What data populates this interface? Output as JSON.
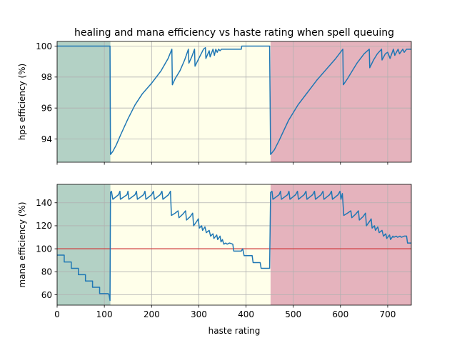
{
  "chart_data": [
    {
      "type": "line",
      "title": "healing and mana efficiency vs haste rating when spell queuing",
      "xlabel": "",
      "ylabel": "hps efficiency (%)",
      "xlim": [
        0,
        750
      ],
      "ylim": [
        92.5,
        100.3
      ],
      "xticks": [
        0,
        100,
        200,
        300,
        400,
        500,
        600,
        700
      ],
      "xticklabels": [
        "",
        "",
        "",
        "",
        "",
        "",
        "",
        ""
      ],
      "yticks": [
        94,
        96,
        98,
        100
      ],
      "yticklabels": [
        "94",
        "96",
        "98",
        "100"
      ],
      "grid": true,
      "bands": [
        {
          "from": 0,
          "to": 113,
          "color": "#b3d1c5"
        },
        {
          "from": 113,
          "to": 452,
          "color": "#ffffea"
        },
        {
          "from": 452,
          "to": 750,
          "color": "#e5b3bd"
        }
      ],
      "series": [
        {
          "color": "#1f77b4",
          "points": [
            [
              0,
              100
            ],
            [
              112,
              100
            ],
            [
              113,
              93.0
            ],
            [
              118,
              93.2
            ],
            [
              125,
              93.6
            ],
            [
              135,
              94.3
            ],
            [
              150,
              95.3
            ],
            [
              165,
              96.2
            ],
            [
              180,
              96.9
            ],
            [
              200,
              97.6
            ],
            [
              220,
              98.4
            ],
            [
              235,
              99.2
            ],
            [
              243,
              99.8
            ],
            [
              244,
              97.5
            ],
            [
              250,
              97.9
            ],
            [
              260,
              98.4
            ],
            [
              270,
              99.1
            ],
            [
              278,
              99.8
            ],
            [
              279,
              98.9
            ],
            [
              285,
              99.3
            ],
            [
              291,
              99.8
            ],
            [
              292,
              98.7
            ],
            [
              300,
              99.2
            ],
            [
              310,
              99.8
            ],
            [
              314,
              99.9
            ],
            [
              315,
              99.2
            ],
            [
              322,
              99.7
            ],
            [
              324,
              99.3
            ],
            [
              330,
              99.8
            ],
            [
              333,
              99.4
            ],
            [
              336,
              99.8
            ],
            [
              339,
              99.6
            ],
            [
              342,
              99.8
            ],
            [
              345,
              99.7
            ],
            [
              348,
              99.8
            ],
            [
              350,
              99.8
            ],
            [
              390,
              99.8
            ],
            [
              391,
              100
            ],
            [
              450,
              100
            ],
            [
              452,
              93.0
            ],
            [
              460,
              93.3
            ],
            [
              470,
              93.9
            ],
            [
              490,
              95.2
            ],
            [
              510,
              96.2
            ],
            [
              530,
              97.0
            ],
            [
              550,
              97.8
            ],
            [
              570,
              98.5
            ],
            [
              590,
              99.2
            ],
            [
              605,
              99.8
            ],
            [
              606,
              97.5
            ],
            [
              615,
              97.9
            ],
            [
              625,
              98.4
            ],
            [
              635,
              98.9
            ],
            [
              650,
              99.5
            ],
            [
              661,
              99.8
            ],
            [
              662,
              98.6
            ],
            [
              670,
              99.1
            ],
            [
              678,
              99.5
            ],
            [
              687,
              99.8
            ],
            [
              688,
              99.1
            ],
            [
              695,
              99.5
            ],
            [
              700,
              99.6
            ],
            [
              705,
              99.2
            ],
            [
              712,
              99.8
            ],
            [
              715,
              99.4
            ],
            [
              722,
              99.8
            ],
            [
              725,
              99.5
            ],
            [
              732,
              99.8
            ],
            [
              735,
              99.6
            ],
            [
              740,
              99.8
            ],
            [
              750,
              99.8
            ]
          ]
        }
      ]
    },
    {
      "type": "line",
      "title": "",
      "xlabel": "haste rating",
      "ylabel": "mana efficiency (%)",
      "xlim": [
        0,
        750
      ],
      "ylim": [
        51,
        156
      ],
      "xticks": [
        0,
        100,
        200,
        300,
        400,
        500,
        600,
        700
      ],
      "xticklabels": [
        "0",
        "100",
        "200",
        "300",
        "400",
        "500",
        "600",
        "700"
      ],
      "yticks": [
        60,
        80,
        100,
        120,
        140
      ],
      "yticklabels": [
        "60",
        "80",
        "100",
        "120",
        "140"
      ],
      "grid": true,
      "reference_line": {
        "y": 100,
        "color": "#d62728"
      },
      "bands": [
        {
          "from": 0,
          "to": 113,
          "color": "#b3d1c5"
        },
        {
          "from": 113,
          "to": 452,
          "color": "#ffffea"
        },
        {
          "from": 452,
          "to": 750,
          "color": "#e5b3bd"
        }
      ],
      "series": [
        {
          "color": "#1f77b4",
          "points": [
            [
              0,
              94.5
            ],
            [
              15,
              94.5
            ],
            [
              15,
              88.5
            ],
            [
              30,
              88.5
            ],
            [
              30,
              83
            ],
            [
              45,
              83
            ],
            [
              45,
              77.5
            ],
            [
              60,
              77.5
            ],
            [
              60,
              72
            ],
            [
              75,
              72
            ],
            [
              75,
              66.5
            ],
            [
              90,
              66.5
            ],
            [
              90,
              61
            ],
            [
              108,
              61
            ],
            [
              110,
              60
            ],
            [
              112,
              55
            ],
            [
              113,
              149
            ],
            [
              115,
              150
            ],
            [
              118,
              143
            ],
            [
              130,
              147
            ],
            [
              133,
              150
            ],
            [
              134,
              143
            ],
            [
              148,
              147
            ],
            [
              150,
              150
            ],
            [
              152,
              143
            ],
            [
              165,
              147
            ],
            [
              168,
              150
            ],
            [
              170,
              143
            ],
            [
              183,
              147
            ],
            [
              186,
              150
            ],
            [
              188,
              143
            ],
            [
              200,
              147
            ],
            [
              204,
              150
            ],
            [
              206,
              143
            ],
            [
              218,
              147
            ],
            [
              222,
              150
            ],
            [
              224,
              143
            ],
            [
              236,
              147
            ],
            [
              240,
              150
            ],
            [
              242,
              129
            ],
            [
              250,
              131
            ],
            [
              256,
              133
            ],
            [
              258,
              127
            ],
            [
              266,
              130
            ],
            [
              272,
              133
            ],
            [
              274,
              125
            ],
            [
              282,
              128
            ],
            [
              287,
              131
            ],
            [
              289,
              120
            ],
            [
              296,
              124
            ],
            [
              299,
              126
            ],
            [
              301,
              118
            ],
            [
              306,
              120
            ],
            [
              308,
              116
            ],
            [
              313,
              119
            ],
            [
              316,
              114
            ],
            [
              322,
              116
            ],
            [
              325,
              111
            ],
            [
              330,
              113
            ],
            [
              332,
              109
            ],
            [
              338,
              112
            ],
            [
              340,
              108
            ],
            [
              345,
              111
            ],
            [
              347,
              106
            ],
            [
              350,
              108
            ],
            [
              353,
              104
            ],
            [
              357,
              105
            ],
            [
              360,
              104
            ],
            [
              365,
              105
            ],
            [
              372,
              104
            ],
            [
              374,
              98
            ],
            [
              380,
              98
            ],
            [
              385,
              98
            ],
            [
              390,
              98
            ],
            [
              393,
              100
            ],
            [
              396,
              94
            ],
            [
              405,
              94
            ],
            [
              413,
              94
            ],
            [
              415,
              88
            ],
            [
              430,
              88
            ],
            [
              432,
              83
            ],
            [
              445,
              83
            ],
            [
              450,
              83
            ],
            [
              452,
              149
            ],
            [
              455,
              150
            ],
            [
              457,
              143
            ],
            [
              470,
              147
            ],
            [
              473,
              150
            ],
            [
              475,
              143
            ],
            [
              488,
              147
            ],
            [
              491,
              150
            ],
            [
              493,
              143
            ],
            [
              505,
              147
            ],
            [
              509,
              150
            ],
            [
              511,
              143
            ],
            [
              523,
              147
            ],
            [
              527,
              150
            ],
            [
              529,
              143
            ],
            [
              541,
              147
            ],
            [
              545,
              150
            ],
            [
              547,
              143
            ],
            [
              559,
              147
            ],
            [
              563,
              150
            ],
            [
              565,
              143
            ],
            [
              577,
              147
            ],
            [
              581,
              150
            ],
            [
              583,
              143
            ],
            [
              595,
              147
            ],
            [
              599,
              150
            ],
            [
              601,
              143
            ],
            [
              604,
              148
            ],
            [
              607,
              129
            ],
            [
              615,
              131
            ],
            [
              622,
              133
            ],
            [
              624,
              127
            ],
            [
              632,
              130
            ],
            [
              638,
              133
            ],
            [
              640,
              125
            ],
            [
              648,
              128
            ],
            [
              653,
              131
            ],
            [
              655,
              120
            ],
            [
              662,
              124
            ],
            [
              665,
              126
            ],
            [
              667,
              118
            ],
            [
              672,
              120
            ],
            [
              674,
              116
            ],
            [
              679,
              119
            ],
            [
              682,
              114
            ],
            [
              688,
              116
            ],
            [
              691,
              111
            ],
            [
              696,
              113
            ],
            [
              698,
              109
            ],
            [
              704,
              112
            ],
            [
              706,
              108
            ],
            [
              711,
              111
            ],
            [
              713,
              110
            ],
            [
              718,
              111
            ],
            [
              721,
              110
            ],
            [
              726,
              111
            ],
            [
              729,
              110
            ],
            [
              735,
              111
            ],
            [
              740,
              111
            ],
            [
              742,
              105
            ],
            [
              750,
              105
            ]
          ]
        }
      ]
    }
  ]
}
